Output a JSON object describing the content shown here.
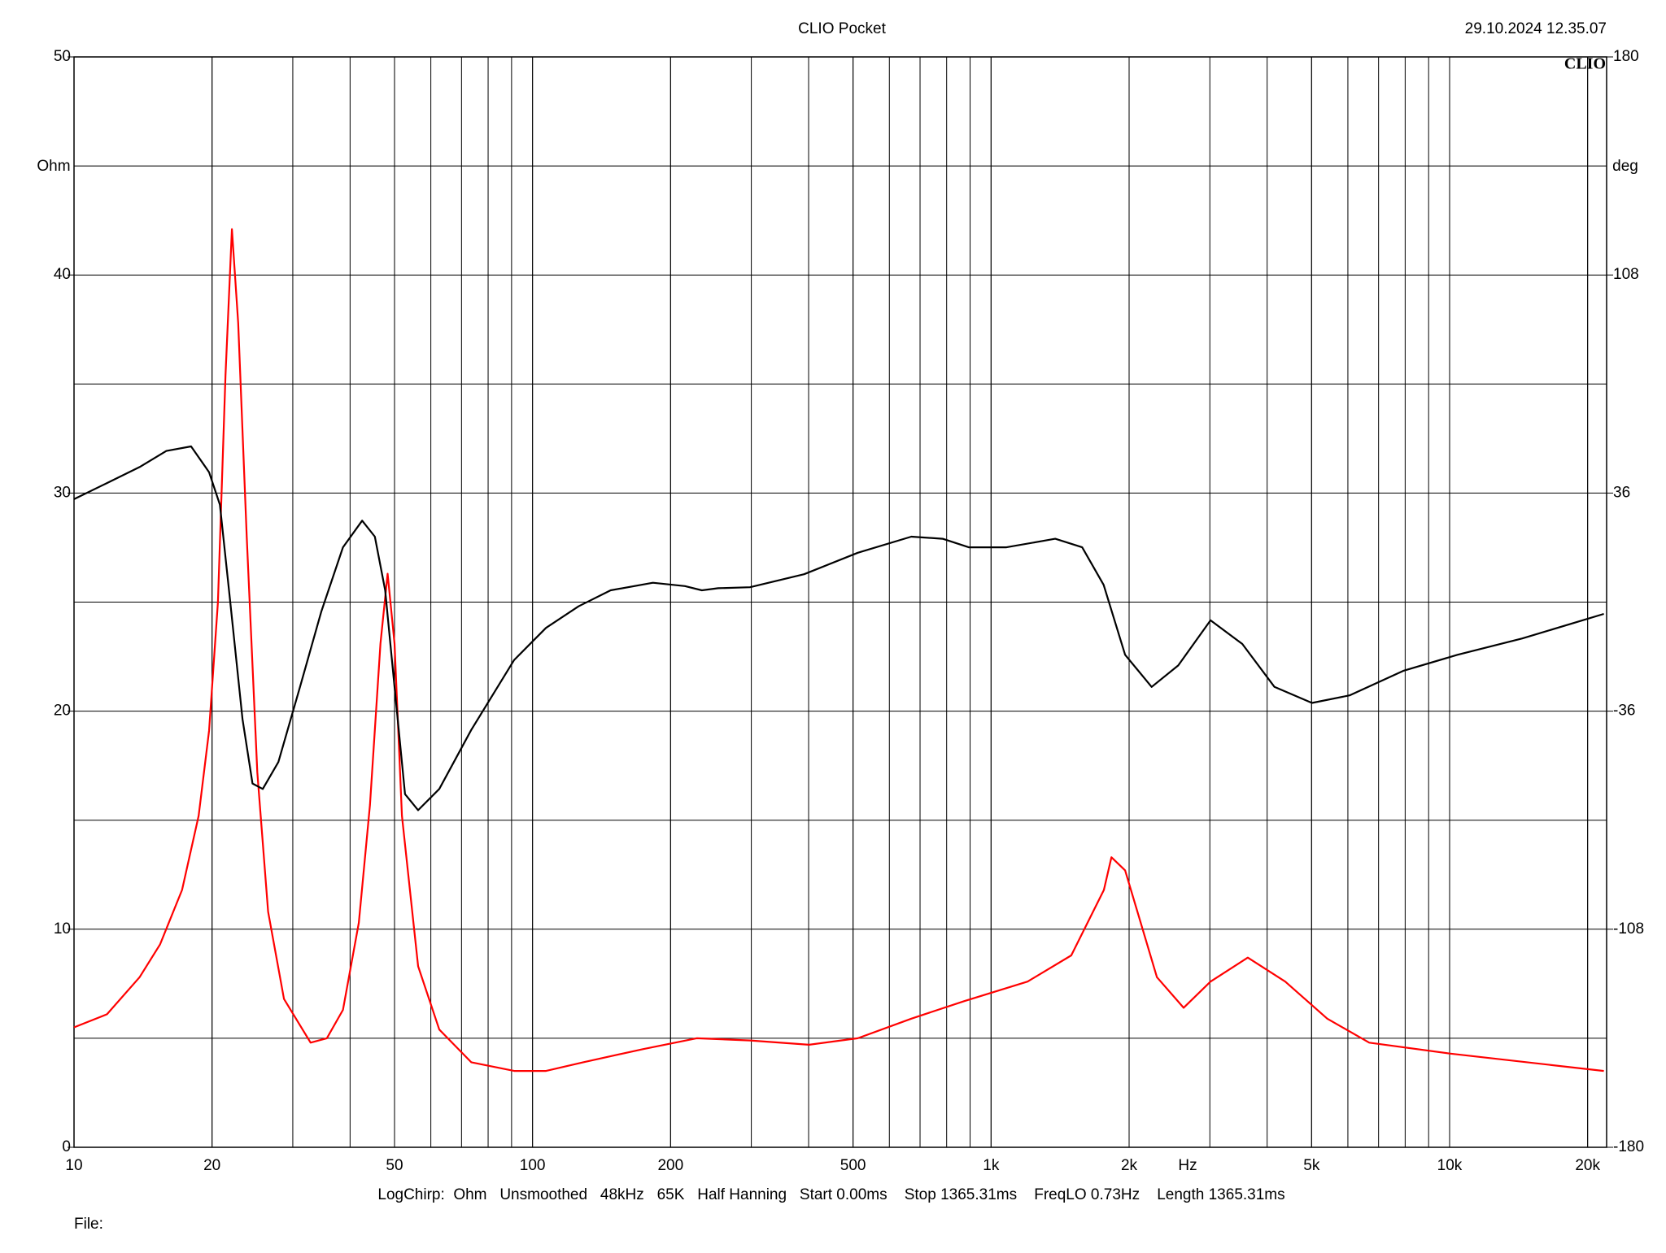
{
  "chart_data": {
    "type": "line",
    "title": "CLIO Pocket",
    "timestamp": "29.10.2024 12.35.07",
    "logo": "CLIO",
    "y_label": "Ohm",
    "y2_label": "deg",
    "x_label": "Hz",
    "footer": "LogChirp:  Ohm   Unsmoothed   48kHz   65K   Half Hanning   Start 0.00ms    Stop 1365.31ms    FreqLO 0.73Hz    Length 1365.31ms",
    "file_label": "File:",
    "x_scale": "log",
    "grid": true,
    "minor_grid": true,
    "xlim": [
      10,
      22000
    ],
    "xticks": [
      10,
      20,
      50,
      100,
      200,
      500,
      {
        "value": 1000,
        "label": "1k"
      },
      {
        "value": 2000,
        "label": "2k"
      },
      {
        "value": 5000,
        "label": "5k"
      },
      {
        "value": 10000,
        "label": "10k"
      },
      {
        "value": 20000,
        "label": "20k"
      }
    ],
    "ylim": [
      0,
      50
    ],
    "yticks": [
      0,
      10,
      20,
      30,
      40,
      50
    ],
    "y2lim": [
      -180,
      180
    ],
    "y2ticks": [
      -180,
      -108,
      -36,
      36,
      108,
      180
    ],
    "series": [
      {
        "color": "#ff0000",
        "axis": "y",
        "x": [
          10,
          11.8,
          13.9,
          15.4,
          17.2,
          18.7,
          19.7,
          20.6,
          21.4,
          22.1,
          22.8,
          23.8,
          25.1,
          26.5,
          28.7,
          32.8,
          35.6,
          38.6,
          41.8,
          44.2,
          46.6,
          48.3,
          50,
          51.9,
          56.3,
          62.6,
          73.5,
          91.2,
          107,
          129,
          174,
          228,
          298,
          401,
          512,
          670,
          873,
          1201,
          1496,
          1762,
          1830,
          1960,
          2300,
          2630,
          3010,
          3630,
          4380,
          5410,
          6680,
          10000,
          21700
        ],
        "values": [
          5.5,
          6.1,
          7.8,
          9.3,
          11.8,
          15.2,
          19.1,
          25.0,
          35.4,
          42.1,
          37.8,
          28.0,
          17.2,
          10.8,
          6.8,
          4.8,
          5.0,
          6.3,
          10.3,
          15.7,
          23.1,
          26.3,
          23.1,
          15.2,
          8.3,
          5.4,
          3.9,
          3.5,
          3.5,
          3.9,
          4.5,
          5.0,
          4.9,
          4.7,
          5.0,
          5.9,
          6.7,
          7.6,
          8.8,
          11.8,
          13.3,
          12.7,
          7.8,
          6.4,
          7.6,
          8.7,
          7.6,
          5.9,
          4.8,
          4.3,
          3.5
        ]
      },
      {
        "color": "#000000",
        "axis": "y2",
        "x": [
          10,
          11.8,
          13.9,
          15.9,
          18.0,
          19.7,
          20.8,
          21.9,
          23.3,
          24.5,
          25.8,
          27.9,
          31.1,
          34.6,
          38.6,
          42.5,
          45.3,
          47.7,
          50,
          52.7,
          56.3,
          62.6,
          73.5,
          91.2,
          107,
          126,
          148,
          183,
          215,
          234,
          254,
          298,
          391,
          512,
          670,
          784,
          894,
          1080,
          1380,
          1580,
          1760,
          1960,
          2240,
          2560,
          3010,
          3530,
          4150,
          5010,
          6050,
          7920,
          10400,
          14400,
          21700
        ],
        "values": [
          34.0,
          39.3,
          44.6,
          49.9,
          51.4,
          42.9,
          32.2,
          0.4,
          -38.6,
          -59.9,
          -61.7,
          -52.8,
          -28.0,
          -3.2,
          18.1,
          26.9,
          21.6,
          3.9,
          -28.0,
          -63.4,
          -68.7,
          -61.7,
          -42.2,
          -19.1,
          -8.5,
          -1.4,
          3.9,
          6.4,
          5.3,
          3.9,
          4.6,
          4.9,
          9.2,
          16.3,
          21.6,
          20.9,
          18.1,
          18.1,
          20.9,
          18.1,
          5.7,
          -17.4,
          -28.0,
          -20.9,
          -6.0,
          -13.8,
          -28.0,
          -33.3,
          -30.8,
          -22.7,
          -17.4,
          -12.0,
          -3.9
        ]
      }
    ]
  }
}
